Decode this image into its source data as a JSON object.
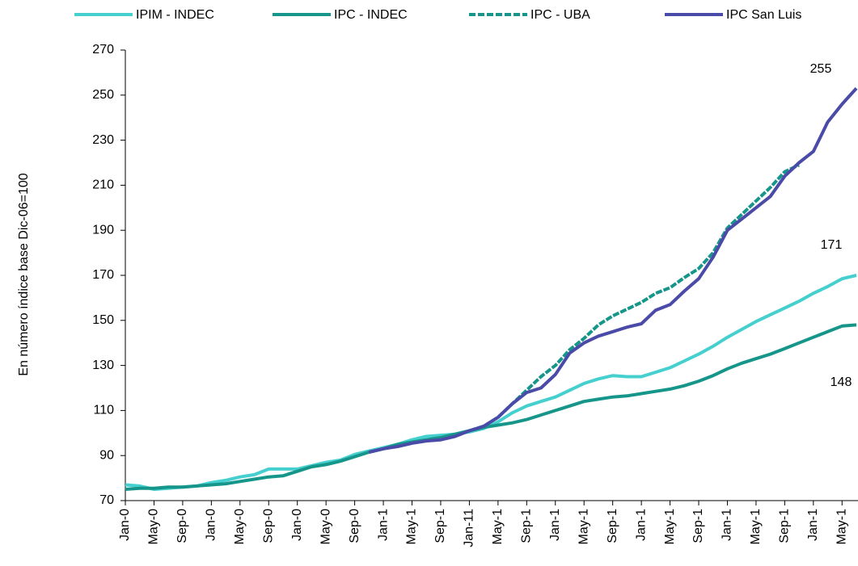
{
  "chart_data": {
    "type": "line",
    "y_label": "En número índice base Dic-06=100",
    "categories": [
      "Jan-0",
      null,
      "May-0",
      null,
      "Sep-0",
      null,
      "Jan-0",
      null,
      "May-0",
      null,
      "Sep-0",
      null,
      "Jan-0",
      null,
      "May-0",
      null,
      "Sep-0",
      null,
      "Jan-1",
      null,
      "May-1",
      null,
      "Sep-1",
      null,
      "Jan-11",
      null,
      "May-1",
      null,
      "Sep-1",
      null,
      "Jan-1",
      null,
      "May-1",
      null,
      "Sep-1",
      null,
      "Jan-1",
      null,
      "May-1",
      null,
      "Sep-1",
      null,
      "Jan-1",
      null,
      "May-1",
      null,
      "Sep-1",
      null,
      "Jan-1",
      null,
      "May-1",
      null
    ],
    "series": [
      {
        "name": "IPIM - INDEC",
        "color": "#45cfcf",
        "dashed": false,
        "values": [
          77,
          76.5,
          75,
          75.5,
          76,
          76.5,
          78,
          79,
          80.5,
          81.5,
          84,
          84,
          84,
          85.5,
          87,
          88,
          90.5,
          92,
          93.5,
          95,
          97,
          98.5,
          99,
          99.5,
          100.5,
          102,
          105,
          109,
          112,
          114,
          116,
          119,
          122,
          124,
          125.5,
          125,
          125,
          127,
          129,
          132,
          135,
          138.5,
          142.5,
          146,
          149.5,
          152.5,
          155.5,
          158.5,
          162,
          165,
          168.5,
          170
        ]
      },
      {
        "name": "IPC - INDEC",
        "color": "#16968a",
        "dashed": false,
        "values": [
          75,
          75.5,
          75.5,
          76,
          76,
          76.5,
          77,
          77.5,
          78.5,
          79.5,
          80.5,
          81,
          83,
          85,
          86,
          87.5,
          89.5,
          91.5,
          93,
          95,
          96,
          97,
          98,
          99.5,
          101,
          102.5,
          103.5,
          104.5,
          106,
          108,
          110,
          112,
          114,
          115,
          116,
          116.5,
          117.5,
          118.5,
          119.5,
          121,
          123,
          125.5,
          128.5,
          131,
          133,
          135,
          137.5,
          140,
          142.5,
          145,
          147.5,
          148
        ]
      },
      {
        "name": "IPC - UBA",
        "color": "#16968a",
        "dashed": true,
        "values": [
          null,
          null,
          null,
          null,
          null,
          null,
          null,
          null,
          null,
          null,
          null,
          null,
          null,
          null,
          null,
          null,
          null,
          null,
          null,
          null,
          null,
          null,
          null,
          null,
          101,
          103,
          107,
          113,
          119,
          125,
          130,
          137,
          142,
          148,
          152,
          155,
          158,
          162,
          164.5,
          169,
          173,
          180,
          191,
          197,
          203,
          209,
          216,
          219,
          null,
          null,
          null,
          null
        ]
      },
      {
        "name": "IPC San Luis",
        "color": "#4a4aa8",
        "dashed": false,
        "values": [
          null,
          null,
          null,
          null,
          null,
          null,
          null,
          null,
          null,
          null,
          null,
          null,
          null,
          null,
          null,
          null,
          null,
          91.5,
          93,
          94,
          95.5,
          96.5,
          97,
          98.5,
          101,
          103,
          107,
          113,
          118,
          120,
          126,
          135.5,
          140,
          143,
          145,
          147,
          148.5,
          154.5,
          157,
          163,
          168.5,
          178,
          190,
          195,
          200,
          205,
          214,
          220,
          225,
          238,
          246,
          253
        ]
      }
    ],
    "annotations": [
      "255",
      "171",
      "148"
    ],
    "ylim": [
      70,
      270
    ],
    "yticks": [
      70,
      90,
      110,
      130,
      150,
      170,
      190,
      210,
      230,
      250,
      270
    ],
    "grid": false
  }
}
